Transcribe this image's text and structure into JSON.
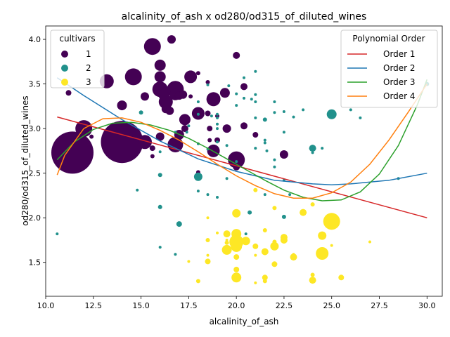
{
  "chart_data": {
    "type": "scatter",
    "title": "alcalinity_of_ash x od280/od315_of_diluted_wines",
    "xlabel": "alcalinity_of_ash",
    "ylabel": "od280/od315_of_diluted_wines",
    "xlim": [
      10.0,
      30.8
    ],
    "ylim": [
      1.12,
      4.15
    ],
    "xticks": [
      "10.0",
      "12.5",
      "15.0",
      "17.5",
      "20.0",
      "22.5",
      "25.0",
      "27.5",
      "30.0"
    ],
    "yticks": [
      "1.5",
      "2.0",
      "2.5",
      "3.0",
      "3.5",
      "4.0"
    ],
    "grid": false,
    "legends": [
      {
        "title": "cultivars",
        "placement": "top-left",
        "entries": [
          "1",
          "2",
          "3"
        ]
      },
      {
        "title": "Polynomial Order",
        "placement": "top-right",
        "entries": [
          "Order 1",
          "Order 2",
          "Order 3",
          "Order 4"
        ]
      }
    ],
    "colors": {
      "1": "#440154",
      "2": "#21918c",
      "3": "#fde725",
      "Order 1": "#d62728",
      "Order 2": "#1f77b4",
      "Order 3": "#2ca02c",
      "Order 4": "#ff7f0e"
    },
    "series": [
      {
        "name": "1",
        "points": [
          [
            11.2,
            3.4,
            4
          ],
          [
            11.4,
            2.73,
            30
          ],
          [
            12.0,
            3.0,
            12
          ],
          [
            12.4,
            2.91,
            3
          ],
          [
            13.2,
            3.53,
            10
          ],
          [
            14.0,
            3.26,
            7
          ],
          [
            14.0,
            2.85,
            30
          ],
          [
            14.6,
            3.58,
            12
          ],
          [
            15.2,
            3.36,
            6
          ],
          [
            15.2,
            2.85,
            10
          ],
          [
            15.6,
            3.92,
            12
          ],
          [
            15.6,
            2.78,
            4
          ],
          [
            15.6,
            2.69,
            3
          ],
          [
            16.0,
            3.58,
            8
          ],
          [
            16.0,
            3.44,
            11
          ],
          [
            16.0,
            3.71,
            8
          ],
          [
            16.0,
            3.48,
            6
          ],
          [
            16.0,
            2.91,
            6
          ],
          [
            16.2,
            3.38,
            8
          ],
          [
            16.3,
            3.3,
            10
          ],
          [
            16.3,
            3.22,
            6
          ],
          [
            16.6,
            4.0,
            6
          ],
          [
            16.8,
            3.44,
            12
          ],
          [
            16.8,
            3.38,
            8
          ],
          [
            16.5,
            3.2,
            6
          ],
          [
            16.8,
            2.82,
            11
          ],
          [
            17.0,
            2.93,
            7
          ],
          [
            17.0,
            3.37,
            6
          ],
          [
            17.2,
            3.38,
            6
          ],
          [
            17.3,
            3.1,
            8
          ],
          [
            17.3,
            3.0,
            5
          ],
          [
            17.6,
            3.58,
            9
          ],
          [
            17.6,
            3.36,
            3
          ],
          [
            18.0,
            3.17,
            9
          ],
          [
            18.0,
            3.62,
            3
          ],
          [
            18.0,
            2.51,
            3
          ],
          [
            18.5,
            3.17,
            4
          ],
          [
            18.6,
            3.0,
            4
          ],
          [
            18.8,
            2.75,
            9
          ],
          [
            18.6,
            2.87,
            3
          ],
          [
            18.8,
            3.33,
            10
          ],
          [
            19.0,
            3.14,
            3
          ],
          [
            19.0,
            2.87,
            4
          ],
          [
            19.4,
            3.4,
            7
          ],
          [
            19.5,
            3.0,
            6
          ],
          [
            18.5,
            3.52,
            3
          ],
          [
            20.0,
            3.82,
            5
          ],
          [
            20.0,
            2.65,
            12
          ],
          [
            20.4,
            3.47,
            5
          ],
          [
            20.4,
            3.03,
            5
          ],
          [
            21.0,
            2.93,
            4
          ],
          [
            22.5,
            2.71,
            6
          ],
          [
            20.0,
            2.57,
            5
          ]
        ]
      },
      {
        "name": "2",
        "points": [
          [
            10.6,
            1.82,
            2
          ],
          [
            14.8,
            2.31,
            2
          ],
          [
            15.0,
            3.18,
            3
          ],
          [
            16.0,
            2.48,
            3
          ],
          [
            16.0,
            2.13,
            2
          ],
          [
            16.0,
            2.12,
            3
          ],
          [
            16.0,
            1.67,
            2
          ],
          [
            16.0,
            2.74,
            2
          ],
          [
            16.8,
            1.59,
            2
          ],
          [
            16.8,
            2.96,
            2
          ],
          [
            17.0,
            1.93,
            4
          ],
          [
            17.4,
            2.96,
            2
          ],
          [
            17.5,
            3.03,
            2
          ],
          [
            18.0,
            2.46,
            6
          ],
          [
            18.0,
            2.47,
            2
          ],
          [
            18.0,
            2.3,
            2
          ],
          [
            18.0,
            3.3,
            2
          ],
          [
            18.0,
            3.16,
            2
          ],
          [
            18.0,
            2.83,
            2
          ],
          [
            18.5,
            2.26,
            2
          ],
          [
            18.5,
            2.77,
            2
          ],
          [
            18.5,
            3.49,
            2
          ],
          [
            18.7,
            3.14,
            2
          ],
          [
            19.0,
            3.16,
            2
          ],
          [
            19.0,
            3.05,
            2
          ],
          [
            19.0,
            2.23,
            2
          ],
          [
            19.0,
            3.0,
            2
          ],
          [
            19.0,
            2.85,
            2
          ],
          [
            19.0,
            3.12,
            2
          ],
          [
            19.5,
            2.44,
            2
          ],
          [
            19.5,
            2.81,
            2
          ],
          [
            19.6,
            3.48,
            2
          ],
          [
            20.0,
            3.39,
            2
          ],
          [
            20.0,
            3.26,
            2
          ],
          [
            20.0,
            2.63,
            2
          ],
          [
            20.4,
            3.57,
            2
          ],
          [
            20.4,
            3.34,
            2
          ],
          [
            20.5,
            1.82,
            2
          ],
          [
            20.7,
            2.06,
            3
          ],
          [
            20.8,
            3.33,
            2
          ],
          [
            21.0,
            3.64,
            2
          ],
          [
            21.0,
            3.38,
            2
          ],
          [
            21.0,
            3.3,
            2
          ],
          [
            21.0,
            2.78,
            2
          ],
          [
            21.0,
            3.12,
            2
          ],
          [
            21.5,
            3.1,
            3
          ],
          [
            21.5,
            2.84,
            2
          ],
          [
            21.5,
            2.26,
            2
          ],
          [
            21.5,
            2.87,
            2
          ],
          [
            21.6,
            2.75,
            2
          ],
          [
            22.0,
            3.3,
            2
          ],
          [
            22.0,
            3.18,
            2
          ],
          [
            22.0,
            2.65,
            2
          ],
          [
            22.0,
            2.57,
            2
          ],
          [
            22.5,
            3.19,
            2
          ],
          [
            22.5,
            2.96,
            2
          ],
          [
            22.5,
            2.01,
            3
          ],
          [
            22.5,
            2.42,
            2
          ],
          [
            22.8,
            2.26,
            2
          ],
          [
            23.0,
            3.13,
            2
          ],
          [
            23.5,
            3.21,
            2
          ],
          [
            24.0,
            2.78,
            5
          ],
          [
            24.0,
            2.73,
            2
          ],
          [
            24.5,
            2.78,
            2
          ],
          [
            25.0,
            3.16,
            7
          ],
          [
            25.0,
            3.19,
            2
          ],
          [
            26.0,
            3.21,
            2
          ],
          [
            26.5,
            3.12,
            2
          ],
          [
            28.5,
            2.44,
            2
          ],
          [
            30.0,
            3.5,
            3
          ]
        ]
      },
      {
        "name": "3",
        "points": [
          [
            17.5,
            1.51,
            2
          ],
          [
            18.0,
            1.29,
            3
          ],
          [
            18.5,
            1.75,
            3
          ],
          [
            18.5,
            1.51,
            4
          ],
          [
            18.5,
            1.58,
            2
          ],
          [
            18.5,
            2.0,
            2
          ],
          [
            19.0,
            1.83,
            2
          ],
          [
            19.5,
            1.64,
            7
          ],
          [
            19.5,
            1.82,
            5
          ],
          [
            19.5,
            1.72,
            3
          ],
          [
            19.5,
            1.75,
            2
          ],
          [
            20.0,
            2.05,
            6
          ],
          [
            20.0,
            1.82,
            7
          ],
          [
            20.0,
            1.73,
            10
          ],
          [
            20.0,
            1.68,
            8
          ],
          [
            20.0,
            1.56,
            4
          ],
          [
            20.0,
            1.33,
            7
          ],
          [
            20.0,
            1.42,
            4
          ],
          [
            20.0,
            1.64,
            3
          ],
          [
            20.0,
            1.78,
            3
          ],
          [
            20.5,
            1.74,
            6
          ],
          [
            21.0,
            1.68,
            4
          ],
          [
            21.0,
            1.27,
            2
          ],
          [
            21.0,
            2.31,
            3
          ],
          [
            21.0,
            1.58,
            2
          ],
          [
            21.5,
            1.86,
            3
          ],
          [
            21.5,
            1.62,
            5
          ],
          [
            21.5,
            1.33,
            4
          ],
          [
            21.5,
            1.29,
            3
          ],
          [
            22.0,
            1.68,
            6
          ],
          [
            22.0,
            2.11,
            3
          ],
          [
            22.0,
            1.48,
            4
          ],
          [
            22.0,
            1.73,
            3
          ],
          [
            22.5,
            1.78,
            5
          ],
          [
            22.5,
            1.75,
            5
          ],
          [
            23.0,
            1.56,
            5
          ],
          [
            23.0,
            1.59,
            2
          ],
          [
            23.5,
            2.06,
            5
          ],
          [
            24.0,
            1.3,
            5
          ],
          [
            24.0,
            1.36,
            3
          ],
          [
            24.0,
            2.15,
            3
          ],
          [
            24.5,
            1.8,
            6
          ],
          [
            24.5,
            1.6,
            9
          ],
          [
            25.0,
            1.96,
            12
          ],
          [
            25.0,
            1.69,
            2
          ],
          [
            25.5,
            1.33,
            4
          ],
          [
            27.0,
            1.73,
            2
          ]
        ]
      }
    ],
    "fits": [
      {
        "name": "Order 1",
        "x": [
          10.6,
          30.0
        ],
        "y": [
          3.13,
          2.0
        ]
      },
      {
        "name": "Order 2",
        "x": [
          10.6,
          12.0,
          14.0,
          16.0,
          18.0,
          20.0,
          22.0,
          24.0,
          25.0,
          26.0,
          28.0,
          30.0
        ],
        "y": [
          3.57,
          3.37,
          3.1,
          2.86,
          2.66,
          2.52,
          2.42,
          2.38,
          2.37,
          2.38,
          2.42,
          2.5
        ]
      },
      {
        "name": "Order 3",
        "x": [
          10.6,
          11.5,
          12.5,
          13.5,
          14.5,
          15.5,
          16.5,
          17.5,
          18.5,
          19.5,
          20.5,
          21.5,
          22.5,
          23.5,
          24.5,
          25.5,
          26.5,
          27.5,
          28.5,
          29.5,
          30.0
        ],
        "y": [
          2.65,
          2.85,
          2.99,
          3.06,
          3.07,
          3.04,
          2.98,
          2.89,
          2.78,
          2.66,
          2.54,
          2.42,
          2.31,
          2.23,
          2.19,
          2.2,
          2.29,
          2.49,
          2.81,
          3.27,
          3.55
        ]
      },
      {
        "name": "Order 4",
        "x": [
          10.6,
          11.0,
          12.0,
          13.0,
          14.0,
          15.0,
          16.0,
          17.0,
          18.0,
          19.0,
          20.0,
          21.0,
          22.0,
          23.0,
          24.0,
          25.0,
          26.0,
          27.0,
          28.0,
          29.0,
          30.0
        ],
        "y": [
          2.48,
          2.7,
          3.0,
          3.11,
          3.12,
          3.07,
          2.98,
          2.87,
          2.74,
          2.6,
          2.47,
          2.36,
          2.27,
          2.22,
          2.22,
          2.28,
          2.4,
          2.6,
          2.87,
          3.18,
          3.5
        ]
      }
    ]
  }
}
